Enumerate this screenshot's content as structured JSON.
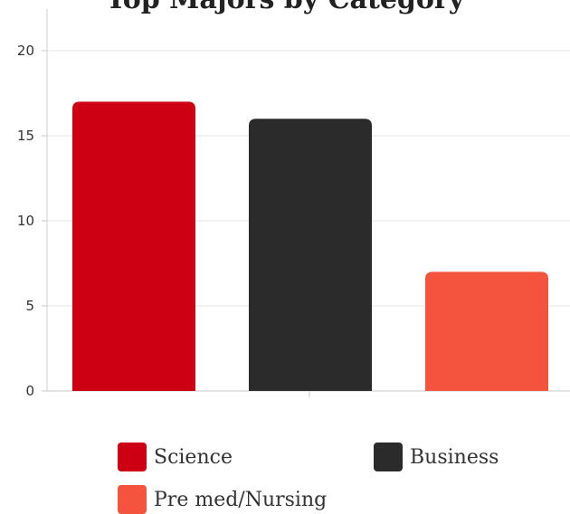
{
  "chart_data": {
    "type": "bar",
    "title": "Top Majors by Category",
    "categories": [
      "Science",
      "Business",
      "Pre med/Nursing"
    ],
    "values": [
      17,
      16,
      7
    ],
    "colors": [
      "#cc0012",
      "#2b2b2b",
      "#f4533d"
    ],
    "ylim": [
      0,
      20
    ],
    "yticks": [
      0,
      5,
      10,
      15,
      20
    ],
    "xlabel": "",
    "ylabel": "",
    "grid": true,
    "legend_position": "bottom"
  }
}
